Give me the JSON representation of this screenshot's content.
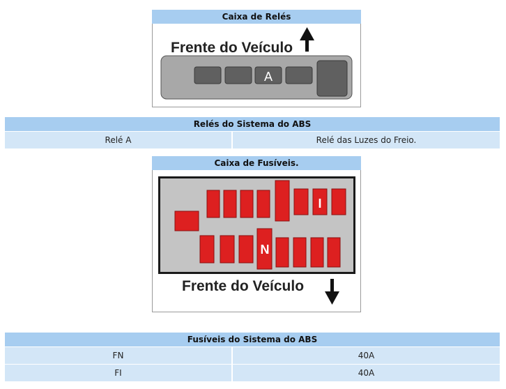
{
  "relay_box": {
    "title": "Caixa de Relés",
    "front_label": "Frente do Veículo",
    "highlighted_relay": "A"
  },
  "relay_table": {
    "title": "Relés do Sistema do ABS",
    "rows": [
      {
        "label": "Relé A",
        "value": "Relé das Luzes do Freio."
      }
    ]
  },
  "fuse_box": {
    "title": "Caixa de Fusíveis.",
    "front_label": "Frente do Veículo",
    "fuse_i": "I",
    "fuse_n": "N"
  },
  "fuse_table": {
    "title": "Fusíveis do Sistema do ABS",
    "rows": [
      {
        "label": "FN",
        "value": "40A"
      },
      {
        "label": "FI",
        "value": "40A"
      }
    ]
  },
  "colors": {
    "header": "#a7cdf0",
    "row": "#d3e6f7",
    "fuse": "#dd2020",
    "relay": "#606060"
  }
}
